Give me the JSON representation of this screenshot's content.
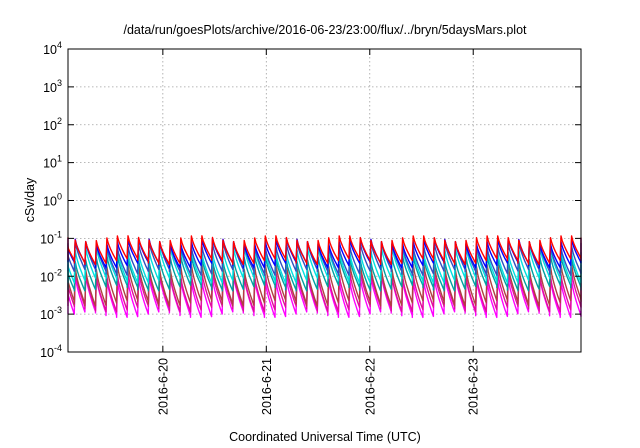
{
  "chart_data": {
    "type": "line",
    "title": "/data/run/goesPlots/archive/2016-06-23/23:00/flux/../bryn/5daysMars.plot",
    "xlabel": "Coordinated Universal Time (UTC)",
    "ylabel": "cSv/day",
    "y_scale": "log",
    "ylim": [
      0.0001,
      10000
    ],
    "xlim": [
      "2016-06-19T02:00",
      "2016-06-24T01:00"
    ],
    "x_tick_labels": [
      "2016-6-20",
      "2016-6-21",
      "2016-6-22",
      "2016-6-23"
    ],
    "y_tick_labels": [
      {
        "base": "10",
        "exp": "-4"
      },
      {
        "base": "10",
        "exp": "-3"
      },
      {
        "base": "10",
        "exp": "-2"
      },
      {
        "base": "10",
        "exp": "-1"
      },
      {
        "base": "10",
        "exp": "0"
      },
      {
        "base": "10",
        "exp": "1"
      },
      {
        "base": "10",
        "exp": "2"
      },
      {
        "base": "10",
        "exp": "3"
      },
      {
        "base": "10",
        "exp": "4"
      }
    ],
    "grid": true,
    "sawtooth_period_hours": 2.45,
    "series": [
      {
        "color": "#ff00ff",
        "peak": 0.009,
        "trough": 0.001
      },
      {
        "color": "#e0109a",
        "peak": 0.012,
        "trough": 0.0014
      },
      {
        "color": "#b04040",
        "peak": 0.018,
        "trough": 0.002
      },
      {
        "color": "#00a0a0",
        "peak": 0.03,
        "trough": 0.005
      },
      {
        "color": "#00e0e0",
        "peak": 0.05,
        "trough": 0.008
      },
      {
        "color": "#3050c0",
        "peak": 0.07,
        "trough": 0.013
      },
      {
        "color": "#0000ff",
        "peak": 0.085,
        "trough": 0.02
      },
      {
        "color": "#ff0000",
        "peak": 0.1,
        "trough": 0.025
      }
    ]
  }
}
